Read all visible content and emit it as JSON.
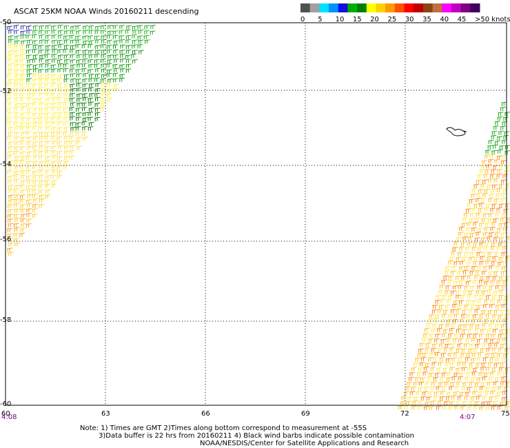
{
  "header": {
    "title": "ASCAT 25KM NOAA Winds 20160211 descending"
  },
  "legend": {
    "bins": [
      {
        "color": "#505050"
      },
      {
        "color": "#a0a0a0"
      },
      {
        "color": "#00e0ff"
      },
      {
        "color": "#0090ff"
      },
      {
        "color": "#1010e0"
      },
      {
        "color": "#00b000"
      },
      {
        "color": "#008000"
      },
      {
        "color": "#ffff00"
      },
      {
        "color": "#ffd000"
      },
      {
        "color": "#ff9900"
      },
      {
        "color": "#ff5000"
      },
      {
        "color": "#ff0000"
      },
      {
        "color": "#c00000"
      },
      {
        "color": "#8b4513"
      },
      {
        "color": "#c07040"
      },
      {
        "color": "#ff00ff"
      },
      {
        "color": "#c000c0"
      },
      {
        "color": "#800080"
      },
      {
        "color": "#400060"
      }
    ],
    "labels": [
      "0",
      "5",
      "10",
      "15",
      "20",
      "25",
      "30",
      "35",
      "40",
      "45",
      ">50 knots"
    ]
  },
  "map": {
    "lat_labels": [
      "-50",
      "-52",
      "-54",
      "-56",
      "-58",
      "-60"
    ],
    "lon_labels": [
      "60",
      "63",
      "66",
      "69",
      "72",
      "75"
    ],
    "time_left": "4:08",
    "time_right": "4:07"
  },
  "notes": {
    "line1": "Note: 1) Times are GMT 2)Times along bottom correspond to measurement at -55S",
    "line2": "3)Data buffer is 22 hrs from 20160211 4) Black wind barbs indicate possible contamination",
    "line3": "NOAA/NESDIS/Center for Satellite Applications and Research"
  }
}
